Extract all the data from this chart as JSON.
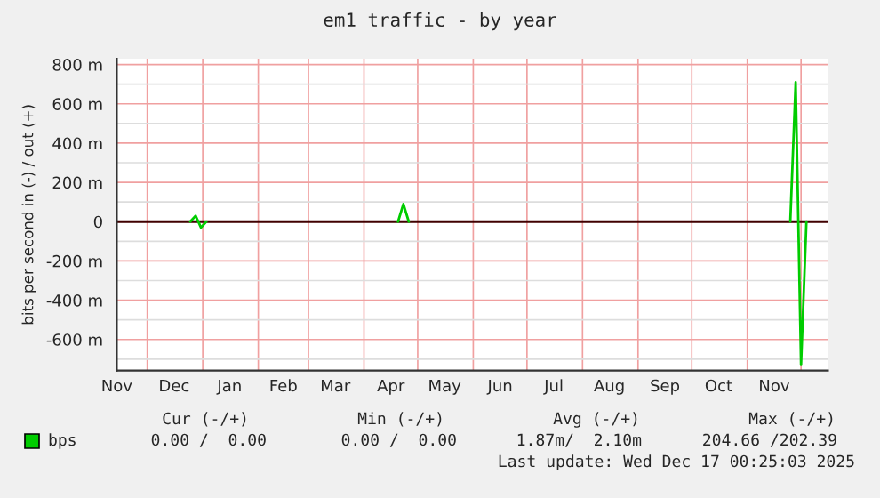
{
  "chart_data": {
    "type": "line",
    "title": "em1 traffic - by year",
    "ylabel": "bits per second in (-) / out (+)",
    "xlim": [
      "2024-11-14",
      "2025-12-16"
    ],
    "ylim": [
      -758,
      830
    ],
    "xticks": [
      {
        "value": "2024-12-01",
        "label": null
      },
      {
        "value": "2025-01-01",
        "label": null
      },
      {
        "value": "2025-02-01",
        "label": null
      },
      {
        "value": "2025-03-01",
        "label": null
      },
      {
        "value": "2025-04-01",
        "label": null
      },
      {
        "value": "2025-05-01",
        "label": null
      },
      {
        "value": "2025-06-01",
        "label": null
      },
      {
        "value": "2025-07-01",
        "label": null
      },
      {
        "value": "2025-08-01",
        "label": null
      },
      {
        "value": "2025-09-01",
        "label": null
      },
      {
        "value": "2025-10-01",
        "label": null
      },
      {
        "value": "2025-11-01",
        "label": null
      },
      {
        "value": "2025-12-01",
        "label": null
      },
      {
        "value": "2024-11-14",
        "label": "Nov"
      },
      {
        "value": "2024-12-16",
        "label": "Dec"
      },
      {
        "value": "2025-01-16",
        "label": "Jan"
      },
      {
        "value": "2025-02-15",
        "label": "Feb"
      },
      {
        "value": "2025-03-16",
        "label": "Mar"
      },
      {
        "value": "2025-04-16",
        "label": "Apr"
      },
      {
        "value": "2025-05-16",
        "label": "May"
      },
      {
        "value": "2025-06-16",
        "label": "Jun"
      },
      {
        "value": "2025-07-16",
        "label": "Jul"
      },
      {
        "value": "2025-08-16",
        "label": "Aug"
      },
      {
        "value": "2025-09-16",
        "label": "Sep"
      },
      {
        "value": "2025-10-16",
        "label": "Oct"
      },
      {
        "value": "2025-11-16",
        "label": "Nov"
      }
    ],
    "yticks": [
      {
        "value": -700,
        "label": null
      },
      {
        "value": -600,
        "label": "-600 m"
      },
      {
        "value": -500,
        "label": null
      },
      {
        "value": -400,
        "label": "-400 m"
      },
      {
        "value": -300,
        "label": null
      },
      {
        "value": -200,
        "label": "-200 m"
      },
      {
        "value": -100,
        "label": null
      },
      {
        "value": 0,
        "label": "0"
      },
      {
        "value": 100,
        "label": null
      },
      {
        "value": 200,
        "label": "200 m"
      },
      {
        "value": 300,
        "label": null
      },
      {
        "value": 400,
        "label": "400 m"
      },
      {
        "value": 500,
        "label": null
      },
      {
        "value": 600,
        "label": "600 m"
      },
      {
        "value": 700,
        "label": null
      },
      {
        "value": 800,
        "label": "800 m"
      }
    ],
    "grid": true,
    "legend": "bottom",
    "series": [
      {
        "name": "bps",
        "color": "#00cc00",
        "x": [
          "2024-12-25",
          "2024-12-28",
          "2024-12-31",
          "2025-01-03",
          "2025-01-05",
          "2025-04-20",
          "2025-04-23",
          "2025-04-26",
          "2025-04-28",
          "2025-11-25",
          "2025-11-28",
          "2025-12-01",
          "2025-12-04"
        ],
        "values": [
          0,
          30,
          -30,
          0,
          null,
          0,
          90,
          0,
          null,
          0,
          710,
          -730,
          0
        ]
      }
    ],
    "ref_lines": [
      {
        "axis": "y",
        "value": 0,
        "color": "#400000"
      }
    ],
    "annotations": [
      "Cur (-/+)",
      "Min (-/+)",
      "Avg (-/+)",
      "Max (-/+)",
      "0.00 /  0.00",
      "0.00 /  0.00",
      "1.87m/  2.10m",
      "204.66 /202.39",
      "Last update: Wed Dec 17 00:25:03 2025"
    ]
  }
}
